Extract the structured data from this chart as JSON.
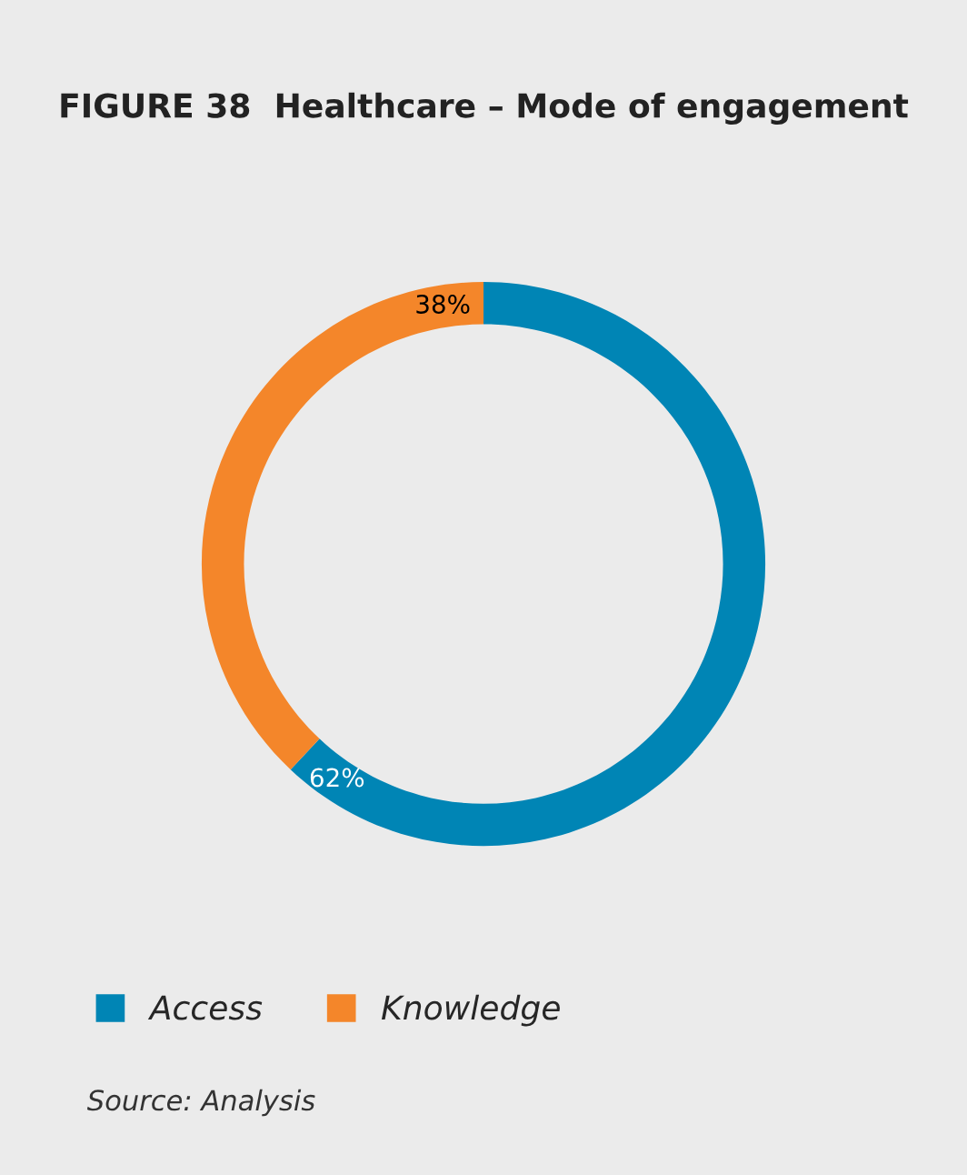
{
  "chart_data": {
    "type": "donut",
    "title": "FIGURE 38  Healthcare – Mode of engagement",
    "categories": [
      "Access",
      "Knowledge"
    ],
    "values": [
      62,
      38
    ],
    "colors": [
      "#0085b5",
      "#f4862a"
    ],
    "value_labels": [
      "62%",
      "38%"
    ],
    "legend": "bottom left",
    "annotations": [
      "Source: Analysis"
    ]
  }
}
